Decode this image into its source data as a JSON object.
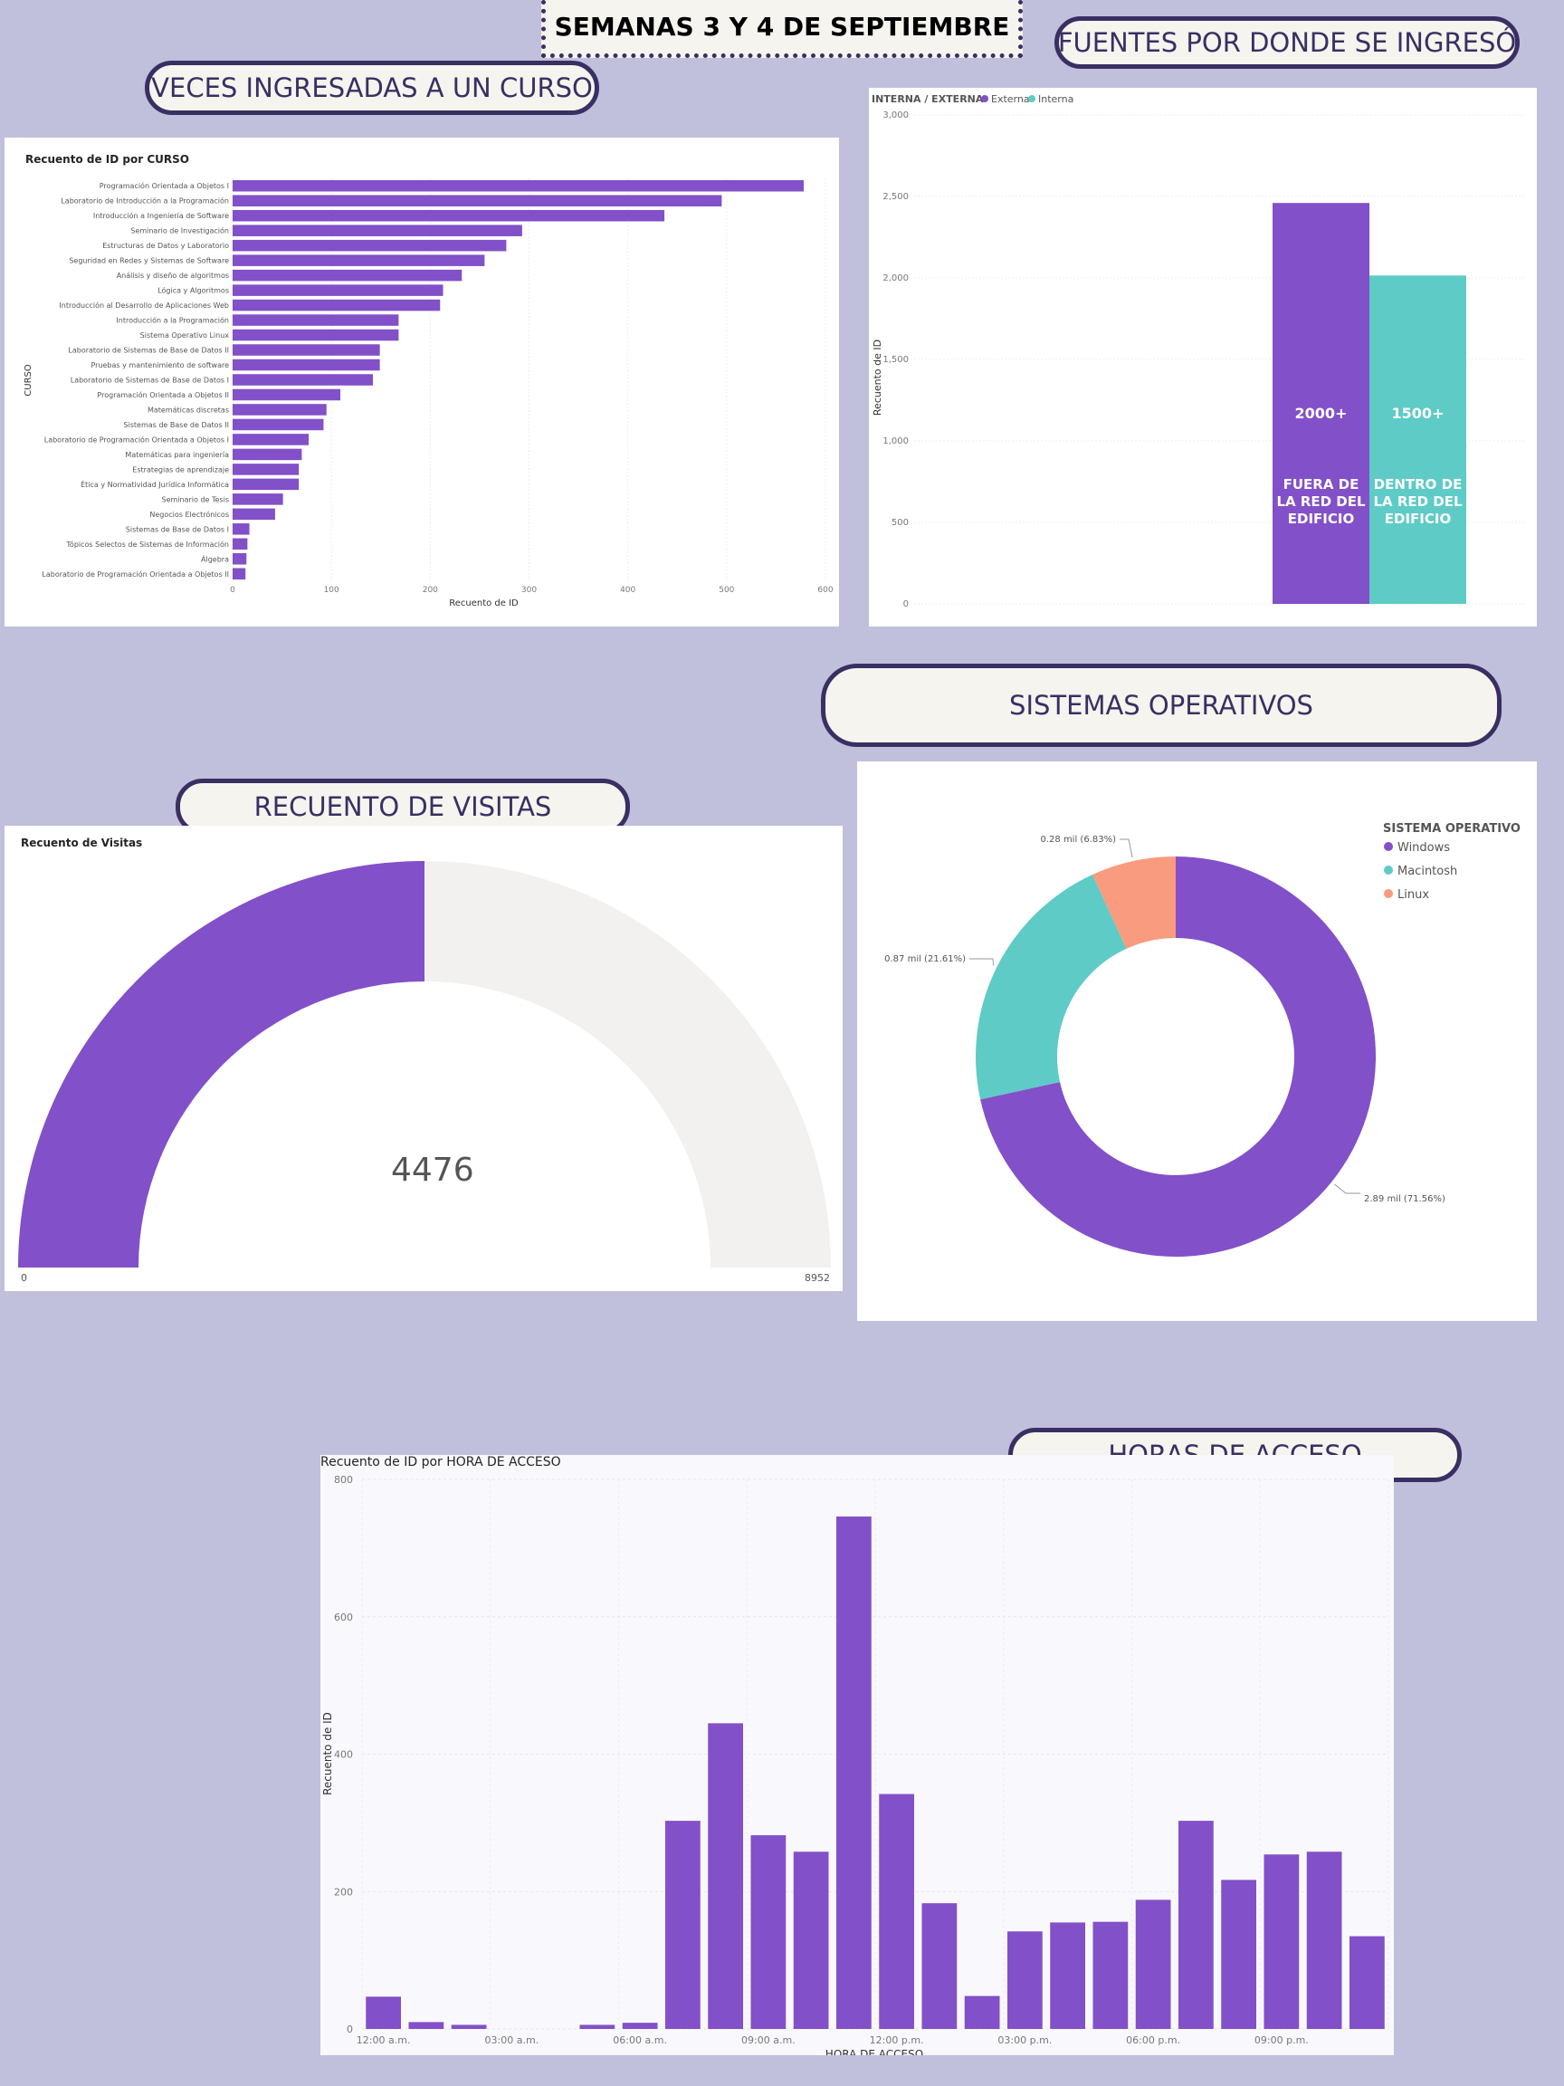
{
  "page_title": "SEMANAS 3 Y 4 DE SEPTIEMBRE",
  "sections": {
    "courses": "VECES INGRESADAS A UN CURSO",
    "sources": "FUENTES POR DONDE SE INGRESÓ",
    "os": "SISTEMAS OPERATIVOS",
    "visits": "RECUENTO DE VISITAS",
    "hours": "HORAS DE ACCESO"
  },
  "colors": {
    "purple": "#8250c8",
    "teal": "#5ecbc6",
    "salmon": "#f99b7e",
    "background": "#c0c0dc",
    "pill_border": "#3a2f63"
  },
  "chart_data": [
    {
      "id": "courses",
      "type": "bar",
      "orientation": "horizontal",
      "title": "Recuento de ID por CURSO",
      "xlabel": "Recuento de ID",
      "ylabel": "CURSO",
      "xlim": [
        0,
        600
      ],
      "ticks": [
        0,
        100,
        200,
        300,
        400,
        500,
        600
      ],
      "categories": [
        "Programación Orientada a Objetos I",
        "Laboratorio de Introducción a la Programación",
        "Introducción a Ingeniería de Software",
        "Seminario de Investigación",
        "Estructuras de Datos y Laboratorio",
        "Seguridad en Redes y Sistemas de Software",
        "Análisis y diseño de algoritmos",
        "Lógica y Algoritmos",
        "Introducción al Desarrollo de Aplicaciones Web",
        "Introducción a la Programación",
        "Sistema Operativo Linux",
        "Laboratorio de Sistemas de Base de Datos II",
        "Pruebas y mantenimiento de software",
        "Laboratorio de Sistemas de Base de Datos I",
        "Programación Orientada a Objetos II",
        "Matemáticas discretas",
        "Sistemas de Base de Datos II",
        "Laboratorio de Programación Orientada a Objetos I",
        "Matemáticas para ingeniería",
        "Estrategias de aprendizaje",
        "Ética y Normatividad Jurídica Informática",
        "Seminario de Tesis",
        "Negocios Electrónicos",
        "Sistemas de Base de Datos I",
        "Tópicos Selectos de Sistemas de Información",
        "Álgebra",
        "Laboratorio de Programación Orientada a Objetos II"
      ],
      "values": [
        578,
        495,
        437,
        293,
        277,
        255,
        232,
        213,
        210,
        168,
        168,
        149,
        149,
        142,
        109,
        95,
        92,
        77,
        70,
        67,
        67,
        51,
        43,
        17,
        15,
        14,
        13
      ]
    },
    {
      "id": "sources",
      "type": "bar",
      "legend_title": "INTERNA / EXTERNA",
      "legend": [
        "Externa",
        "Interna"
      ],
      "ylabel": "Recuento de ID",
      "ylim": [
        0,
        3000
      ],
      "ticks": [
        0,
        500,
        1000,
        1500,
        2000,
        2500,
        3000
      ],
      "tick_labels": [
        "0",
        "500",
        "1,000",
        "1,500",
        "2,000",
        "2,500",
        "3,000"
      ],
      "series": [
        {
          "name": "Externa",
          "value": 2460,
          "label": "2000+",
          "annotation": [
            "FUERA DE",
            "LA RED DEL",
            "EDIFICIO"
          ]
        },
        {
          "name": "Interna",
          "value": 2015,
          "label": "1500+",
          "annotation": [
            "DENTRO DE",
            "LA RED DEL",
            "EDIFICIO"
          ]
        }
      ]
    },
    {
      "id": "visits",
      "type": "gauge",
      "title": "Recuento de Visitas",
      "value": 4476,
      "value_label": "4476",
      "min": 0,
      "max": 8952,
      "min_label": "0",
      "max_label": "8952"
    },
    {
      "id": "os",
      "type": "pie",
      "donut": true,
      "legend_title": "SISTEMA OPERATIVO",
      "slices": [
        {
          "name": "Windows",
          "value": 71.56,
          "label": "2.89 mil (71.56%)"
        },
        {
          "name": "Macintosh",
          "value": 21.61,
          "label": "0.87 mil (21.61%)"
        },
        {
          "name": "Linux",
          "value": 6.83,
          "label": "0.28 mil (6.83%)"
        }
      ]
    },
    {
      "id": "hours",
      "type": "bar",
      "title": "Recuento de ID por HORA DE ACCESO",
      "xlabel": "HORA DE ACCESO",
      "ylabel": "Recuento de ID",
      "ylim": [
        0,
        800
      ],
      "ticks": [
        0,
        200,
        400,
        600,
        800
      ],
      "x_tick_labels": [
        "12:00 a.m.",
        "03:00 a.m.",
        "06:00 a.m.",
        "09:00 a.m.",
        "12:00 p.m.",
        "03:00 p.m.",
        "06:00 p.m.",
        "09:00 p.m."
      ],
      "x": [
        0,
        1,
        2,
        3,
        4,
        5,
        6,
        7,
        8,
        9,
        10,
        11,
        12,
        13,
        14,
        15,
        16,
        17,
        18,
        19,
        20,
        21,
        22,
        23
      ],
      "values": [
        47,
        10,
        6,
        0,
        0,
        6,
        9,
        303,
        445,
        282,
        258,
        746,
        342,
        183,
        48,
        142,
        155,
        156,
        188,
        303,
        217,
        254,
        258,
        135
      ]
    }
  ]
}
